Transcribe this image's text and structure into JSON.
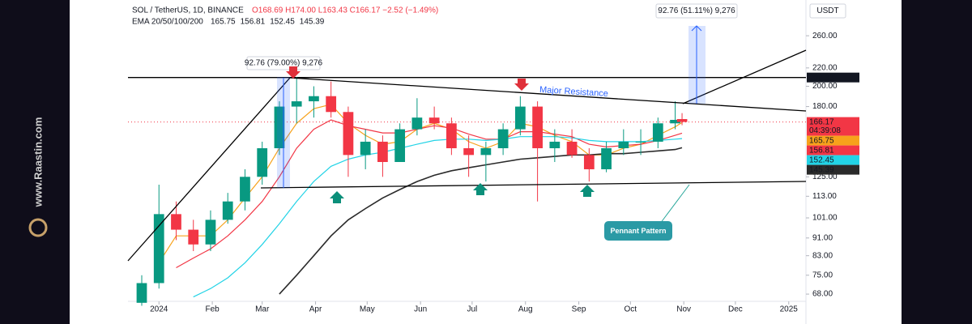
{
  "brand": "www.Raastin.com",
  "chart_data": {
    "type": "candlestick",
    "header": {
      "symbol": "SOL / TetherUS, 1D, BINANCE",
      "ohlc": "O168.69 H174.00 L163.43 C166.17 −2.52 (−1.49%)",
      "ema": "EMA 20/50/100/200"
    },
    "unit": "USDT",
    "x": [
      -10,
      0,
      10,
      20,
      30,
      40,
      50,
      60,
      70,
      80,
      90,
      100,
      110,
      120,
      130,
      140,
      150,
      160,
      170,
      180,
      190,
      200,
      210,
      220,
      230,
      240,
      250,
      260,
      270,
      280,
      290,
      300,
      304
    ],
    "open": [
      65,
      72,
      103,
      95,
      88,
      100,
      110,
      125,
      145,
      180,
      185,
      190,
      175,
      140,
      150,
      135,
      160,
      170,
      165,
      145,
      140,
      145,
      160,
      180,
      145,
      150,
      140,
      130,
      145,
      150,
      150,
      165,
      168.69
    ],
    "high": [
      75,
      120,
      110,
      100,
      105,
      115,
      130,
      150,
      185,
      210,
      200,
      205,
      180,
      160,
      155,
      165,
      188,
      180,
      170,
      155,
      150,
      165,
      190,
      185,
      160,
      160,
      145,
      150,
      160,
      160,
      170,
      185,
      174
    ],
    "low": [
      64,
      70,
      90,
      85,
      85,
      98,
      105,
      120,
      140,
      165,
      170,
      170,
      125,
      130,
      125,
      135,
      155,
      160,
      140,
      125,
      122,
      140,
      155,
      110,
      135,
      138,
      122,
      128,
      140,
      140,
      145,
      160,
      163.43
    ],
    "close": [
      72,
      103,
      95,
      88,
      100,
      110,
      125,
      145,
      180,
      185,
      190,
      175,
      140,
      150,
      135,
      160,
      170,
      165,
      145,
      140,
      145,
      160,
      180,
      145,
      150,
      140,
      130,
      145,
      150,
      150,
      165,
      168,
      166.17
    ],
    "up_color": "#089981",
    "down_color": "#f23645",
    "countdown": "04:39:08",
    "series": [
      {
        "name": "EMA 20",
        "color": "#f7a21b",
        "values": [
          null,
          80,
          92,
          92,
          92,
          100,
          112,
          125,
          145,
          165,
          178,
          182,
          165,
          155,
          148,
          150,
          160,
          165,
          160,
          150,
          145,
          150,
          165,
          162,
          155,
          150,
          140,
          140,
          145,
          148,
          155,
          162,
          165.75
        ]
      },
      {
        "name": "EMA 50",
        "color": "#f23645",
        "values": [
          null,
          null,
          78,
          82,
          86,
          92,
          100,
          110,
          125,
          145,
          160,
          168,
          163,
          160,
          157,
          157,
          160,
          163,
          161,
          156,
          152,
          152,
          158,
          158,
          156,
          154,
          148,
          146,
          147,
          148,
          151,
          155,
          156.81
        ]
      },
      {
        "name": "EMA 100",
        "color": "#22d3e6",
        "values": [
          null,
          null,
          null,
          67,
          70,
          74,
          80,
          88,
          98,
          110,
          122,
          132,
          137,
          140,
          142,
          145,
          148,
          151,
          152,
          152,
          151,
          152,
          154,
          154,
          154,
          153,
          151,
          150,
          150,
          150,
          151,
          152,
          152.45
        ]
      },
      {
        "name": "EMA 200",
        "color": "#2a2a2a",
        "values": [
          null,
          null,
          null,
          null,
          null,
          null,
          null,
          null,
          68,
          75,
          83,
          92,
          100,
          106,
          112,
          117,
          122,
          126,
          129,
          131,
          133,
          135,
          137,
          138,
          139,
          140,
          140,
          141,
          141,
          142,
          143,
          144,
          145.39
        ]
      }
    ],
    "xlim": [
      -18,
      376
    ],
    "xticks": [
      {
        "value": 0,
        "label": "2024"
      },
      {
        "value": 31,
        "label": "Feb"
      },
      {
        "value": 60,
        "label": "Mar"
      },
      {
        "value": 91,
        "label": "Apr"
      },
      {
        "value": 121,
        "label": "May"
      },
      {
        "value": 152,
        "label": "Jun"
      },
      {
        "value": 182,
        "label": "Jul"
      },
      {
        "value": 213,
        "label": "Aug"
      },
      {
        "value": 244,
        "label": "Sep"
      },
      {
        "value": 274,
        "label": "Oct"
      },
      {
        "value": 305,
        "label": "Nov"
      },
      {
        "value": 335,
        "label": "Dec"
      },
      {
        "value": 366,
        "label": "2025"
      }
    ],
    "ylim": [
      65.5,
      313
    ],
    "log_scale": true,
    "yticks": [
      {
        "value": 260,
        "label": "260.00"
      },
      {
        "value": 220,
        "label": "220.00"
      },
      {
        "value": 200,
        "label": "200.00"
      },
      {
        "value": 180,
        "label": "180.00"
      },
      {
        "value": 125,
        "label": "125.00"
      },
      {
        "value": 113,
        "label": "113.00"
      },
      {
        "value": 101,
        "label": "101.00"
      },
      {
        "value": 91,
        "label": "91.00"
      },
      {
        "value": 83,
        "label": "83.00"
      },
      {
        "value": 75,
        "label": "75.00"
      },
      {
        "value": 68,
        "label": "68.00"
      }
    ],
    "resistance": 209.33,
    "annotations": {
      "resistance_label": "Major Resistance",
      "pattern_label": "Pennant Pattern",
      "measure_1": "92.76 (79.00%) 9,276",
      "measure_2": "92.76 (51.11%) 9,276"
    }
  }
}
